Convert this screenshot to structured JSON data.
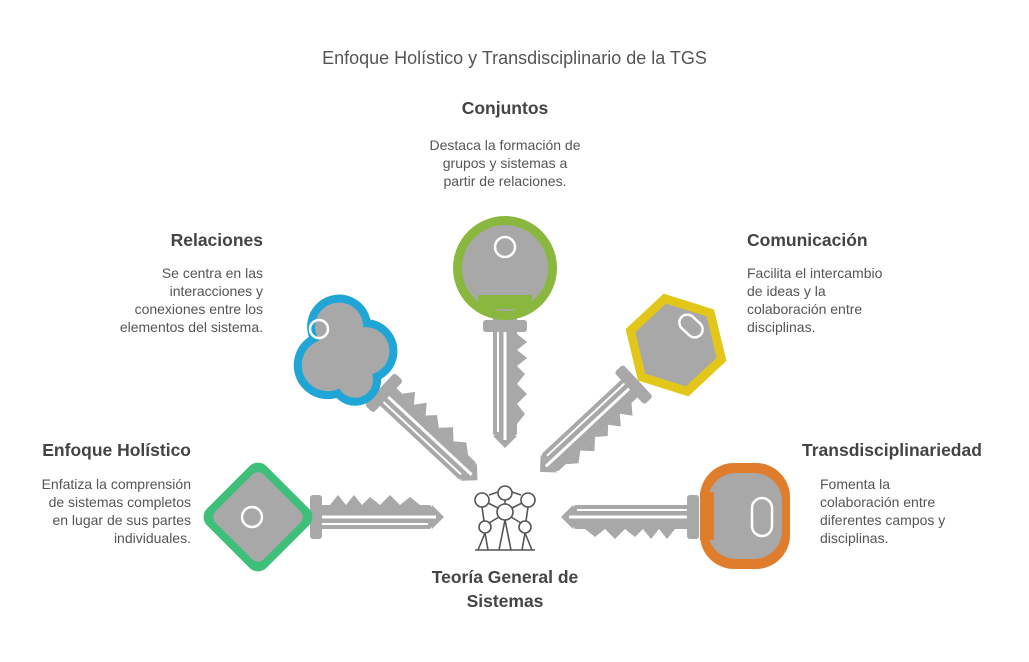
{
  "title": "Enfoque Holístico y Transdisciplinario de la TGS",
  "center": {
    "label": "Teoría General de\nSistemas",
    "icon": "network-icon"
  },
  "colors": {
    "green": "#8ab83e",
    "blue": "#1fa6d6",
    "yellow": "#e2c71a",
    "emerald": "#3ebf7a",
    "orange": "#e07d2c",
    "key_gray": "#a8a8a8"
  },
  "items": {
    "conjuntos": {
      "title": "Conjuntos",
      "text": "Destaca la formación de\ngrupos y sistemas a\npartir de relaciones."
    },
    "relaciones": {
      "title": "Relaciones",
      "text": "Se centra en las\ninteracciones y\nconexiones entre los\nelementos del sistema."
    },
    "comunicacion": {
      "title": "Comunicación",
      "text": "Facilita el intercambio\nde ideas y la\ncolaboración entre\ndisciplinas."
    },
    "holistico": {
      "title": "Enfoque Holístico",
      "text": "Enfatiza la comprensión\nde sistemas completos\nen lugar de sus partes\nindividuales."
    },
    "transdisciplinariedad": {
      "title": "Transdisciplinariedad",
      "text": "Fomenta la\ncolaboración entre\ndiferentes campos y\ndisciplinas."
    }
  }
}
